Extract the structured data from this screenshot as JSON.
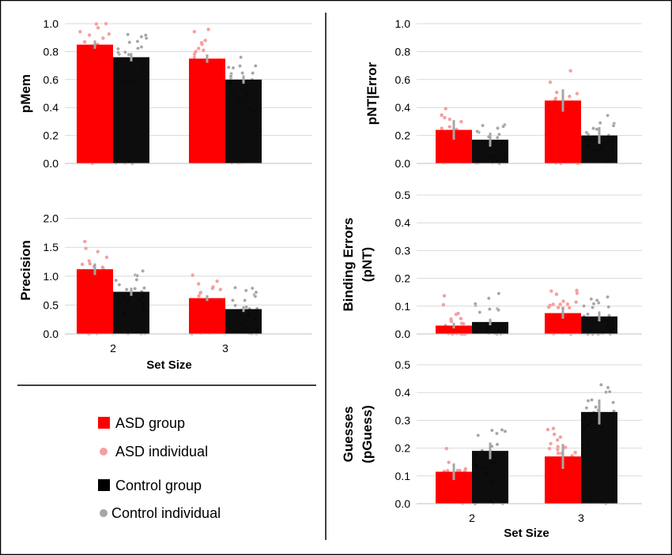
{
  "colors": {
    "asd_group": "#ff0000",
    "asd_individual": "#f4a0a0",
    "control_group": "#000000",
    "control_individual": "#a6a6a6",
    "error_bar": "#a6a6a6",
    "frame": "#000000"
  },
  "legend": {
    "asd_group": "ASD group",
    "asd_individual": "ASD individual",
    "control_group": "Control group",
    "control_individual": "Control individual"
  },
  "chart_data": [
    {
      "type": "bar",
      "id": "pmem",
      "ylabel": "pMem",
      "xlabel": "",
      "categories": [
        "2",
        "3"
      ],
      "ylim": [
        0,
        1.0
      ],
      "yticks": [
        "0.0",
        "0.2",
        "0.4",
        "0.6",
        "0.8",
        "1.0"
      ],
      "show_x_tick_labels": false,
      "series": [
        {
          "name": "ASD group",
          "values": [
            0.85,
            0.75
          ],
          "errors": [
            0.03,
            0.03
          ]
        },
        {
          "name": "Control group",
          "values": [
            0.76,
            0.6
          ],
          "errors": [
            0.03,
            0.03
          ]
        }
      ]
    },
    {
      "type": "bar",
      "id": "precision",
      "ylabel": "Precision",
      "xlabel": "Set Size",
      "categories": [
        "2",
        "3"
      ],
      "ylim": [
        0,
        2.2
      ],
      "yticks": [
        "0.0",
        "0.5",
        "1.0",
        "1.5",
        "2.0"
      ],
      "show_x_tick_labels": true,
      "series": [
        {
          "name": "ASD group",
          "values": [
            1.12,
            0.62
          ],
          "errors": [
            0.1,
            0.05
          ]
        },
        {
          "name": "Control group",
          "values": [
            0.73,
            0.43
          ],
          "errors": [
            0.07,
            0.05
          ]
        }
      ]
    },
    {
      "type": "bar",
      "id": "pnt_error",
      "ylabel": "pNT|Error",
      "xlabel": "",
      "categories": [
        "2",
        "3"
      ],
      "ylim": [
        0,
        1.0
      ],
      "yticks": [
        "0.0",
        "0.2",
        "0.4",
        "0.6",
        "0.8",
        "1.0"
      ],
      "show_x_tick_labels": false,
      "series": [
        {
          "name": "ASD group",
          "values": [
            0.24,
            0.45
          ],
          "errors": [
            0.07,
            0.08
          ]
        },
        {
          "name": "Control group",
          "values": [
            0.17,
            0.2
          ],
          "errors": [
            0.05,
            0.06
          ]
        }
      ]
    },
    {
      "type": "bar",
      "id": "binding_errors",
      "ylabel": "Binding Errors",
      "ylabel2": "(pNT)",
      "xlabel": "",
      "categories": [
        "2",
        "3"
      ],
      "ylim": [
        0,
        0.5
      ],
      "yticks": [
        "0.0",
        "0.1",
        "0.2",
        "0.3",
        "0.4",
        "0.5"
      ],
      "show_x_tick_labels": false,
      "series": [
        {
          "name": "ASD group",
          "values": [
            0.03,
            0.075
          ],
          "errors": [
            0.01,
            0.02
          ]
        },
        {
          "name": "Control group",
          "values": [
            0.043,
            0.063
          ],
          "errors": [
            0.012,
            0.018
          ]
        }
      ]
    },
    {
      "type": "bar",
      "id": "guesses",
      "ylabel": "Guesses",
      "ylabel2": "(pGuess)",
      "xlabel": "Set Size",
      "categories": [
        "2",
        "3"
      ],
      "ylim": [
        0,
        0.5
      ],
      "yticks": [
        "0.0",
        "0.1",
        "0.2",
        "0.3",
        "0.4",
        "0.5"
      ],
      "show_x_tick_labels": true,
      "series": [
        {
          "name": "ASD group",
          "values": [
            0.115,
            0.17
          ],
          "errors": [
            0.03,
            0.045
          ]
        },
        {
          "name": "Control group",
          "values": [
            0.19,
            0.33
          ],
          "errors": [
            0.03,
            0.045
          ]
        }
      ]
    }
  ]
}
